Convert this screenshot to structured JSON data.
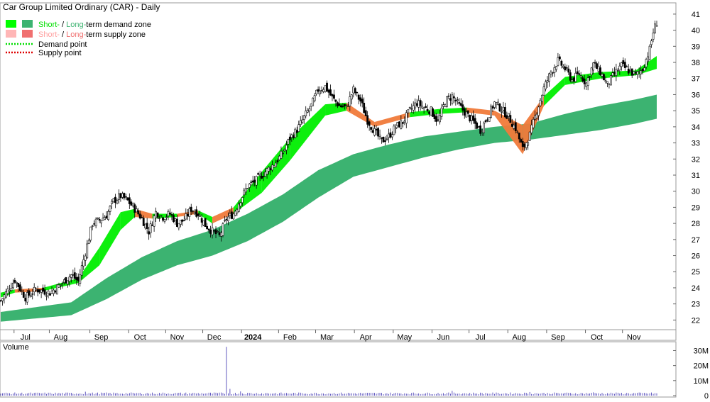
{
  "chart_data": [
    {
      "type": "candlestick",
      "title": "Car Group Limited Ordinary (CAR) - Daily",
      "legend": {
        "placement": "top-left",
        "items": [
          {
            "swatches": [
              "#00ff00",
              "#3cb371"
            ],
            "text_a": "Short-",
            "sep": " / ",
            "text_b": "Long-",
            "text_c": "term demand zone",
            "color_a": "#00e000",
            "color_b": "#3cb371"
          },
          {
            "swatches": [
              "#ffb6b6",
              "#f07070"
            ],
            "text_a": "Short-",
            "sep": " / ",
            "text_b": "Long-",
            "text_c": "term supply zone",
            "color_a": "#ffa0a0",
            "color_b": "#f07070"
          },
          {
            "line_color": "#00dd00",
            "text": "Demand point"
          },
          {
            "line_color": "#dd0000",
            "text": "Supply point"
          }
        ]
      },
      "x_ticks": [
        "Jul",
        "Aug",
        "Sep",
        "Oct",
        "Nov",
        "Dec",
        "2024",
        "Feb",
        "Mar",
        "Apr",
        "May",
        "Jun",
        "Jul",
        "Aug",
        "Sep",
        "Oct",
        "Nov"
      ],
      "y_ticks": [
        22,
        23,
        24,
        25,
        26,
        27,
        28,
        29,
        30,
        31,
        32,
        33,
        34,
        35,
        36,
        37,
        38,
        39,
        40,
        41
      ],
      "ylim": [
        21.4,
        41.7
      ],
      "close_series": [
        {
          "d": 0,
          "v": 23.2
        },
        {
          "d": 8,
          "v": 24.5
        },
        {
          "d": 14,
          "v": 23.4
        },
        {
          "d": 20,
          "v": 23.9
        },
        {
          "d": 28,
          "v": 23.7
        },
        {
          "d": 34,
          "v": 24.2
        },
        {
          "d": 40,
          "v": 24.8
        },
        {
          "d": 44,
          "v": 24.4
        },
        {
          "d": 48,
          "v": 26.2
        },
        {
          "d": 52,
          "v": 28.0
        },
        {
          "d": 56,
          "v": 28.2
        },
        {
          "d": 60,
          "v": 28.5
        },
        {
          "d": 64,
          "v": 29.4
        },
        {
          "d": 68,
          "v": 29.7
        },
        {
          "d": 72,
          "v": 29.4
        },
        {
          "d": 76,
          "v": 28.9
        },
        {
          "d": 80,
          "v": 28.3
        },
        {
          "d": 84,
          "v": 27.5
        },
        {
          "d": 88,
          "v": 28.7
        },
        {
          "d": 92,
          "v": 28.4
        },
        {
          "d": 96,
          "v": 28.6
        },
        {
          "d": 100,
          "v": 28.0
        },
        {
          "d": 104,
          "v": 28.2
        },
        {
          "d": 108,
          "v": 28.9
        },
        {
          "d": 112,
          "v": 28.6
        },
        {
          "d": 116,
          "v": 27.9
        },
        {
          "d": 120,
          "v": 27.5
        },
        {
          "d": 124,
          "v": 27.2
        },
        {
          "d": 128,
          "v": 28.3
        },
        {
          "d": 132,
          "v": 28.6
        },
        {
          "d": 136,
          "v": 29.5
        },
        {
          "d": 140,
          "v": 30.3
        },
        {
          "d": 144,
          "v": 30.6
        },
        {
          "d": 148,
          "v": 31.0
        },
        {
          "d": 152,
          "v": 31.4
        },
        {
          "d": 156,
          "v": 31.8
        },
        {
          "d": 160,
          "v": 32.4
        },
        {
          "d": 164,
          "v": 33.3
        },
        {
          "d": 168,
          "v": 33.8
        },
        {
          "d": 172,
          "v": 34.6
        },
        {
          "d": 176,
          "v": 35.3
        },
        {
          "d": 180,
          "v": 36.3
        },
        {
          "d": 184,
          "v": 36.5
        },
        {
          "d": 188,
          "v": 35.8
        },
        {
          "d": 192,
          "v": 35.3
        },
        {
          "d": 196,
          "v": 35.2
        },
        {
          "d": 200,
          "v": 36.3
        },
        {
          "d": 204,
          "v": 35.6
        },
        {
          "d": 208,
          "v": 34.4
        },
        {
          "d": 212,
          "v": 33.7
        },
        {
          "d": 216,
          "v": 33.1
        },
        {
          "d": 220,
          "v": 33.4
        },
        {
          "d": 224,
          "v": 34.0
        },
        {
          "d": 228,
          "v": 34.3
        },
        {
          "d": 232,
          "v": 35.0
        },
        {
          "d": 236,
          "v": 35.5
        },
        {
          "d": 240,
          "v": 35.2
        },
        {
          "d": 244,
          "v": 35.0
        },
        {
          "d": 248,
          "v": 34.3
        },
        {
          "d": 252,
          "v": 35.6
        },
        {
          "d": 256,
          "v": 35.9
        },
        {
          "d": 260,
          "v": 35.3
        },
        {
          "d": 264,
          "v": 34.8
        },
        {
          "d": 268,
          "v": 34.3
        },
        {
          "d": 272,
          "v": 33.8
        },
        {
          "d": 276,
          "v": 34.6
        },
        {
          "d": 280,
          "v": 35.5
        },
        {
          "d": 284,
          "v": 35.1
        },
        {
          "d": 288,
          "v": 34.6
        },
        {
          "d": 292,
          "v": 33.9
        },
        {
          "d": 296,
          "v": 32.6
        },
        {
          "d": 300,
          "v": 33.5
        },
        {
          "d": 304,
          "v": 35.0
        },
        {
          "d": 308,
          "v": 36.4
        },
        {
          "d": 312,
          "v": 37.4
        },
        {
          "d": 316,
          "v": 38.1
        },
        {
          "d": 320,
          "v": 37.6
        },
        {
          "d": 324,
          "v": 36.9
        },
        {
          "d": 328,
          "v": 37.3
        },
        {
          "d": 332,
          "v": 36.7
        },
        {
          "d": 336,
          "v": 37.9
        },
        {
          "d": 340,
          "v": 37.4
        },
        {
          "d": 344,
          "v": 36.6
        },
        {
          "d": 348,
          "v": 37.3
        },
        {
          "d": 352,
          "v": 37.8
        },
        {
          "d": 356,
          "v": 37.5
        },
        {
          "d": 360,
          "v": 37.2
        },
        {
          "d": 364,
          "v": 37.6
        },
        {
          "d": 368,
          "v": 38.8
        },
        {
          "d": 370,
          "v": 39.9
        },
        {
          "d": 372,
          "v": 40.5
        }
      ],
      "long_term_demand_zone": [
        {
          "d": 0,
          "lo": 21.9,
          "hi": 22.5
        },
        {
          "d": 40,
          "lo": 22.3,
          "hi": 23.1
        },
        {
          "d": 60,
          "lo": 23.3,
          "hi": 24.6
        },
        {
          "d": 80,
          "lo": 24.5,
          "hi": 25.9
        },
        {
          "d": 100,
          "lo": 25.4,
          "hi": 26.9
        },
        {
          "d": 120,
          "lo": 26.0,
          "hi": 27.6
        },
        {
          "d": 140,
          "lo": 26.9,
          "hi": 28.6
        },
        {
          "d": 160,
          "lo": 28.1,
          "hi": 29.8
        },
        {
          "d": 180,
          "lo": 29.6,
          "hi": 31.3
        },
        {
          "d": 200,
          "lo": 30.9,
          "hi": 32.3
        },
        {
          "d": 220,
          "lo": 31.5,
          "hi": 32.9
        },
        {
          "d": 240,
          "lo": 32.1,
          "hi": 33.4
        },
        {
          "d": 260,
          "lo": 32.6,
          "hi": 33.7
        },
        {
          "d": 280,
          "lo": 33.0,
          "hi": 34.0
        },
        {
          "d": 300,
          "lo": 33.2,
          "hi": 34.2
        },
        {
          "d": 320,
          "lo": 33.5,
          "hi": 34.8
        },
        {
          "d": 340,
          "lo": 33.8,
          "hi": 35.3
        },
        {
          "d": 360,
          "lo": 34.2,
          "hi": 35.7
        },
        {
          "d": 372,
          "lo": 34.5,
          "hi": 36.0
        }
      ],
      "short_term_zone": [
        {
          "d": 0,
          "lo": 23.4,
          "hi": 23.7,
          "kind": "demand"
        },
        {
          "d": 8,
          "lo": 23.7,
          "hi": 23.9,
          "kind": "supply"
        },
        {
          "d": 24,
          "lo": 23.8,
          "hi": 24.0,
          "kind": "demand"
        },
        {
          "d": 44,
          "lo": 24.3,
          "hi": 24.6,
          "kind": "demand"
        },
        {
          "d": 56,
          "lo": 25.4,
          "hi": 26.5,
          "kind": "demand"
        },
        {
          "d": 68,
          "lo": 27.6,
          "hi": 28.7,
          "kind": "demand"
        },
        {
          "d": 76,
          "lo": 28.4,
          "hi": 28.9,
          "kind": "supply"
        },
        {
          "d": 86,
          "lo": 28.3,
          "hi": 28.6,
          "kind": "demand"
        },
        {
          "d": 100,
          "lo": 28.4,
          "hi": 28.6,
          "kind": "supply"
        },
        {
          "d": 112,
          "lo": 28.6,
          "hi": 28.8,
          "kind": "demand"
        },
        {
          "d": 120,
          "lo": 28.0,
          "hi": 28.4,
          "kind": "supply"
        },
        {
          "d": 132,
          "lo": 28.6,
          "hi": 29.0,
          "kind": "demand"
        },
        {
          "d": 148,
          "lo": 29.9,
          "hi": 31.2,
          "kind": "demand"
        },
        {
          "d": 164,
          "lo": 31.9,
          "hi": 33.3,
          "kind": "demand"
        },
        {
          "d": 184,
          "lo": 34.7,
          "hi": 35.4,
          "kind": "demand"
        },
        {
          "d": 196,
          "lo": 35.0,
          "hi": 35.5,
          "kind": "supply"
        },
        {
          "d": 212,
          "lo": 34.0,
          "hi": 34.3,
          "kind": "supply"
        },
        {
          "d": 232,
          "lo": 34.6,
          "hi": 34.9,
          "kind": "demand"
        },
        {
          "d": 248,
          "lo": 34.8,
          "hi": 35.1,
          "kind": "demand"
        },
        {
          "d": 264,
          "lo": 34.9,
          "hi": 35.2,
          "kind": "supply"
        },
        {
          "d": 280,
          "lo": 34.7,
          "hi": 35.0,
          "kind": "supply"
        },
        {
          "d": 296,
          "lo": 32.3,
          "hi": 34.1,
          "kind": "supply"
        },
        {
          "d": 308,
          "lo": 35.3,
          "hi": 35.9,
          "kind": "demand"
        },
        {
          "d": 320,
          "lo": 36.6,
          "hi": 37.1,
          "kind": "demand"
        },
        {
          "d": 340,
          "lo": 37.0,
          "hi": 37.4,
          "kind": "demand"
        },
        {
          "d": 360,
          "lo": 37.2,
          "hi": 37.5,
          "kind": "demand"
        },
        {
          "d": 372,
          "lo": 37.6,
          "hi": 38.4,
          "kind": "demand"
        }
      ]
    },
    {
      "type": "bar",
      "title": "Volume",
      "y_ticks": [
        "0",
        "10M",
        "20M",
        "30M"
      ],
      "ylim": [
        0,
        34
      ],
      "baseline_millions": 1.5,
      "spikes": [
        {
          "d": 128,
          "v": 32.5
        },
        {
          "d": 130,
          "v": 4.5
        },
        {
          "d": 136,
          "v": 2.8
        },
        {
          "d": 48,
          "v": 2.6
        },
        {
          "d": 256,
          "v": 3.2
        },
        {
          "d": 300,
          "v": 2.4
        },
        {
          "d": 336,
          "v": 2.2
        }
      ]
    }
  ]
}
